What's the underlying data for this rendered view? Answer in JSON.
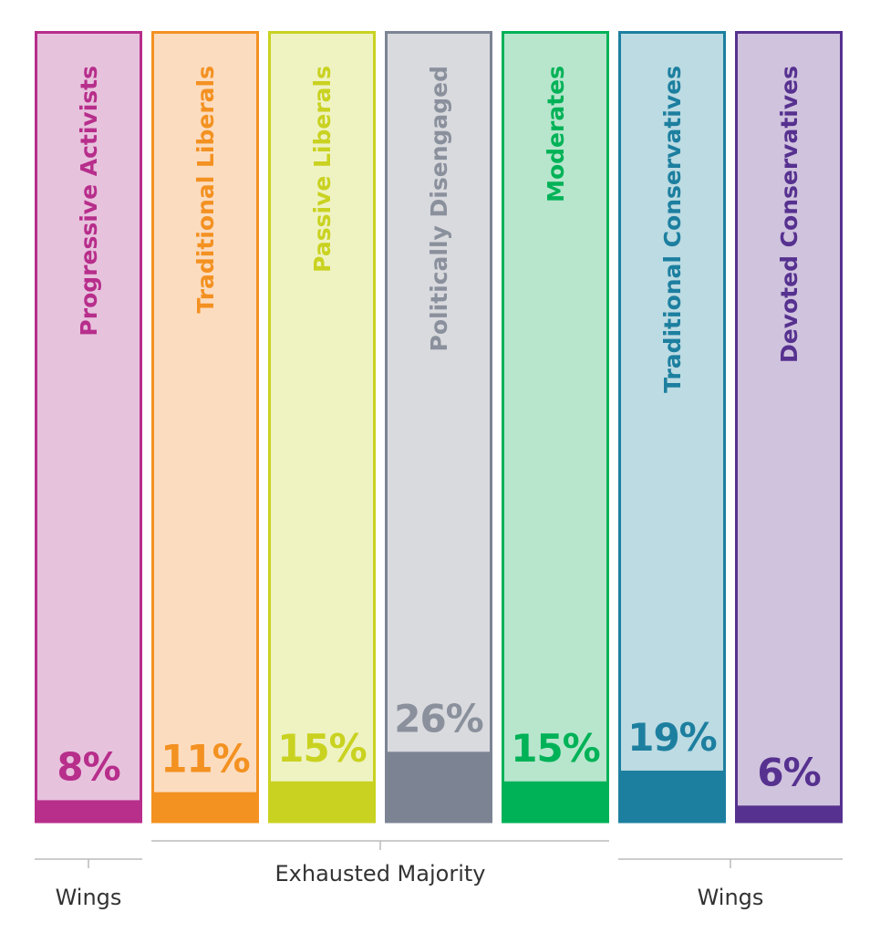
{
  "chart_data": {
    "type": "bar",
    "categories": [
      "Progressive Activists",
      "Traditional Liberals",
      "Passive Liberals",
      "Politically Disengaged",
      "Moderates",
      "Traditional Conservatives",
      "Devoted Conservatives"
    ],
    "values": [
      8,
      11,
      15,
      26,
      15,
      19,
      6
    ],
    "value_labels": [
      "8%",
      "11%",
      "15%",
      "26%",
      "15%",
      "19%",
      "6%"
    ],
    "colors": [
      "#b72e8b",
      "#f39121",
      "#c9d220",
      "#7c8494",
      "#00b257",
      "#1d7f9f",
      "#56318f"
    ],
    "light_colors": [
      "#e7c2dd",
      "#fcdcbf",
      "#eff3c2",
      "#d9dade",
      "#b7e6cd",
      "#bcdbe3",
      "#d0c3de"
    ],
    "label_colors": [
      "#b72e8b",
      "#f39121",
      "#c9d220",
      "#8a909c",
      "#00b257",
      "#1d7f9f",
      "#56318f"
    ],
    "groups": [
      {
        "label": "Wings",
        "members": [
          0
        ]
      },
      {
        "label": "Exhausted Majority",
        "members": [
          1,
          2,
          3,
          4
        ]
      },
      {
        "label": "Wings",
        "members": [
          5,
          6
        ]
      }
    ],
    "title": "",
    "xlabel": "",
    "ylabel": "",
    "ylim": [
      0,
      100
    ],
    "grid": false,
    "legend": "none"
  }
}
